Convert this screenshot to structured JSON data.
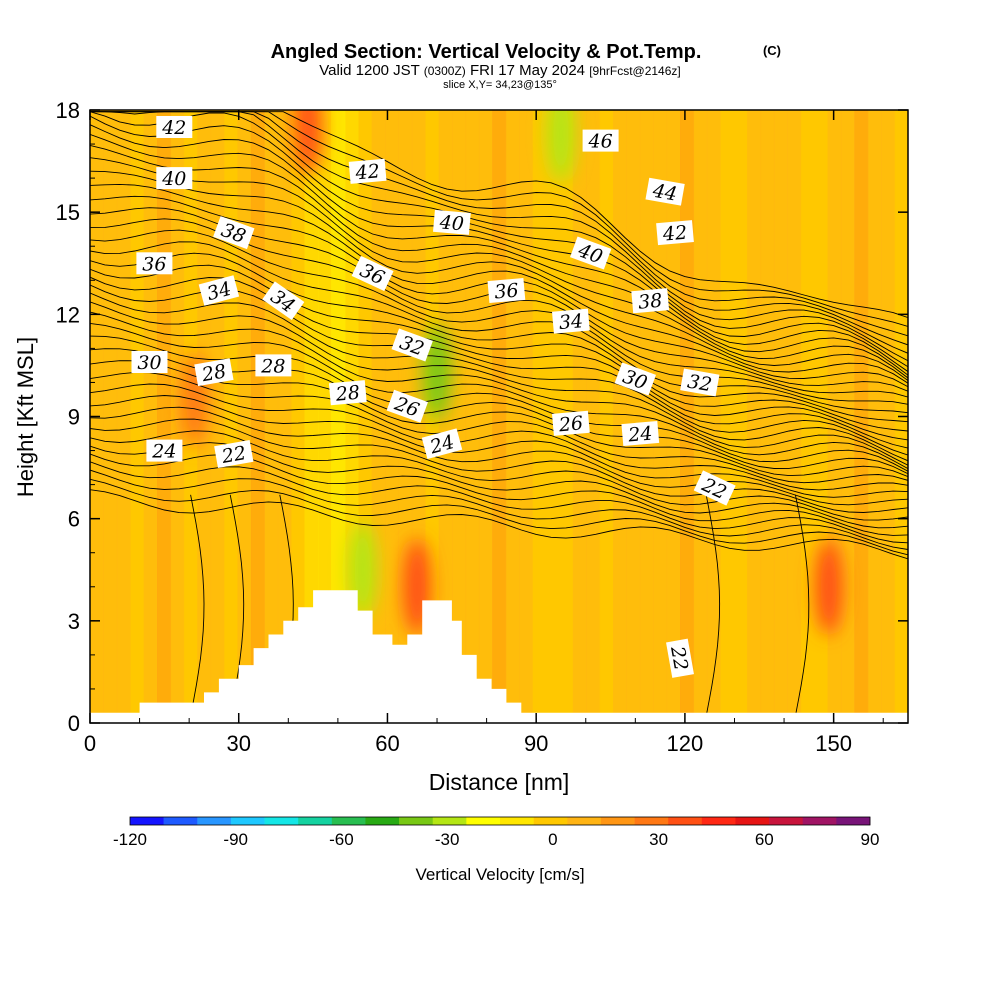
{
  "chart_data": {
    "type": "heatmap",
    "title": "Angled Section: Vertical Velocity & Pot.Temp.",
    "title_suffix": "(C)",
    "subtitle_main_a": "Valid 1200 JST",
    "subtitle_small_a": "(0300Z)",
    "subtitle_main_b": "FRI 17 May 2024",
    "subtitle_small_b": "[9hrFcst@2146z]",
    "subtitle_line2": "slice X,Y= 34,23@135°",
    "xlabel": "Distance [nm]",
    "ylabel": "Height [Kft MSL]",
    "xlim": [
      0,
      165
    ],
    "ylim": [
      0,
      18
    ],
    "x_ticks": [
      0,
      30,
      60,
      90,
      120,
      150
    ],
    "y_ticks": [
      0,
      3,
      6,
      9,
      12,
      15,
      18
    ],
    "colorbar": {
      "label": "Vertical Velocity [cm/s]",
      "min": -120,
      "max": 90,
      "step": 10,
      "ticks": [
        -120,
        -90,
        -60,
        -30,
        0,
        30,
        60,
        90
      ],
      "colors": [
        "#1414ff",
        "#1e5aff",
        "#2896ff",
        "#1ec8ff",
        "#14e6e6",
        "#14d2a0",
        "#28be50",
        "#28aa14",
        "#78c814",
        "#b4e614",
        "#ffff00",
        "#ffe600",
        "#ffc800",
        "#ffb414",
        "#ff9614",
        "#ff7814",
        "#ff5014",
        "#ff2814",
        "#e61414",
        "#c8143c",
        "#a01464",
        "#781478"
      ]
    },
    "terrain_profile": [
      [
        0,
        0.3
      ],
      [
        10,
        0.3
      ],
      [
        10,
        0.6
      ],
      [
        23,
        0.6
      ],
      [
        23,
        0.9
      ],
      [
        26,
        0.9
      ],
      [
        26,
        1.3
      ],
      [
        30,
        1.3
      ],
      [
        30,
        1.7
      ],
      [
        33,
        1.7
      ],
      [
        33,
        2.2
      ],
      [
        36,
        2.2
      ],
      [
        36,
        2.6
      ],
      [
        39,
        2.6
      ],
      [
        39,
        3.0
      ],
      [
        42,
        3.0
      ],
      [
        42,
        3.4
      ],
      [
        45,
        3.4
      ],
      [
        45,
        3.9
      ],
      [
        54,
        3.9
      ],
      [
        54,
        3.3
      ],
      [
        57,
        3.3
      ],
      [
        57,
        2.6
      ],
      [
        61,
        2.6
      ],
      [
        61,
        2.3
      ],
      [
        64,
        2.3
      ],
      [
        64,
        2.6
      ],
      [
        67,
        2.6
      ],
      [
        67,
        3.6
      ],
      [
        73,
        3.6
      ],
      [
        73,
        3.0
      ],
      [
        75,
        3.0
      ],
      [
        75,
        2.0
      ],
      [
        78,
        2.0
      ],
      [
        78,
        1.3
      ],
      [
        81,
        1.3
      ],
      [
        81,
        1.0
      ],
      [
        84,
        1.0
      ],
      [
        84,
        0.6
      ],
      [
        87,
        0.6
      ],
      [
        87,
        0.3
      ],
      [
        165,
        0.3
      ]
    ],
    "vv_features": [
      {
        "x": 21,
        "y": 9.5,
        "value": 35
      },
      {
        "x": 44,
        "y": 17.5,
        "value": 40
      },
      {
        "x": 66,
        "y": 4.0,
        "value": 40
      },
      {
        "x": 149,
        "y": 4.0,
        "value": 45
      },
      {
        "x": 55,
        "y": 4.5,
        "value": -25
      },
      {
        "x": 70,
        "y": 10.3,
        "value": -35
      },
      {
        "x": 95,
        "y": 17.3,
        "value": -25
      }
    ],
    "contour_labels": [
      {
        "text": "42",
        "x": 17,
        "y": 17.5,
        "angle": 0
      },
      {
        "text": "40",
        "x": 17,
        "y": 16.0,
        "angle": 0
      },
      {
        "text": "38",
        "x": 29,
        "y": 14.4,
        "angle": 20
      },
      {
        "text": "36",
        "x": 13,
        "y": 13.5,
        "angle": 0
      },
      {
        "text": "34",
        "x": 26,
        "y": 12.7,
        "angle": -15
      },
      {
        "text": "34",
        "x": 39,
        "y": 12.4,
        "angle": 35
      },
      {
        "text": "30",
        "x": 12,
        "y": 10.6,
        "angle": 0
      },
      {
        "text": "28",
        "x": 25,
        "y": 10.3,
        "angle": -10
      },
      {
        "text": "28",
        "x": 37,
        "y": 10.5,
        "angle": 0
      },
      {
        "text": "24",
        "x": 15,
        "y": 8.0,
        "angle": 0
      },
      {
        "text": "22",
        "x": 29,
        "y": 7.9,
        "angle": -10
      },
      {
        "text": "42",
        "x": 56,
        "y": 16.2,
        "angle": -5
      },
      {
        "text": "40",
        "x": 73,
        "y": 14.7,
        "angle": 5
      },
      {
        "text": "36",
        "x": 57,
        "y": 13.2,
        "angle": 25
      },
      {
        "text": "32",
        "x": 65,
        "y": 11.1,
        "angle": 20
      },
      {
        "text": "28",
        "x": 52,
        "y": 9.7,
        "angle": -5
      },
      {
        "text": "26",
        "x": 64,
        "y": 9.3,
        "angle": 20
      },
      {
        "text": "24",
        "x": 71,
        "y": 8.2,
        "angle": -15
      },
      {
        "text": "46",
        "x": 103,
        "y": 17.1,
        "angle": 0
      },
      {
        "text": "44",
        "x": 116,
        "y": 15.6,
        "angle": 10
      },
      {
        "text": "42",
        "x": 118,
        "y": 14.4,
        "angle": -5
      },
      {
        "text": "40",
        "x": 101,
        "y": 13.8,
        "angle": 20
      },
      {
        "text": "36",
        "x": 84,
        "y": 12.7,
        "angle": -5
      },
      {
        "text": "38",
        "x": 113,
        "y": 12.4,
        "angle": -5
      },
      {
        "text": "34",
        "x": 97,
        "y": 11.8,
        "angle": -5
      },
      {
        "text": "30",
        "x": 110,
        "y": 10.1,
        "angle": 20
      },
      {
        "text": "32",
        "x": 123,
        "y": 10.0,
        "angle": 10
      },
      {
        "text": "26",
        "x": 97,
        "y": 8.8,
        "angle": -5
      },
      {
        "text": "24",
        "x": 111,
        "y": 8.5,
        "angle": -5
      },
      {
        "text": "22",
        "x": 126,
        "y": 6.9,
        "angle": 25
      },
      {
        "text": "22",
        "x": 119,
        "y": 1.9,
        "angle": 80
      }
    ]
  }
}
